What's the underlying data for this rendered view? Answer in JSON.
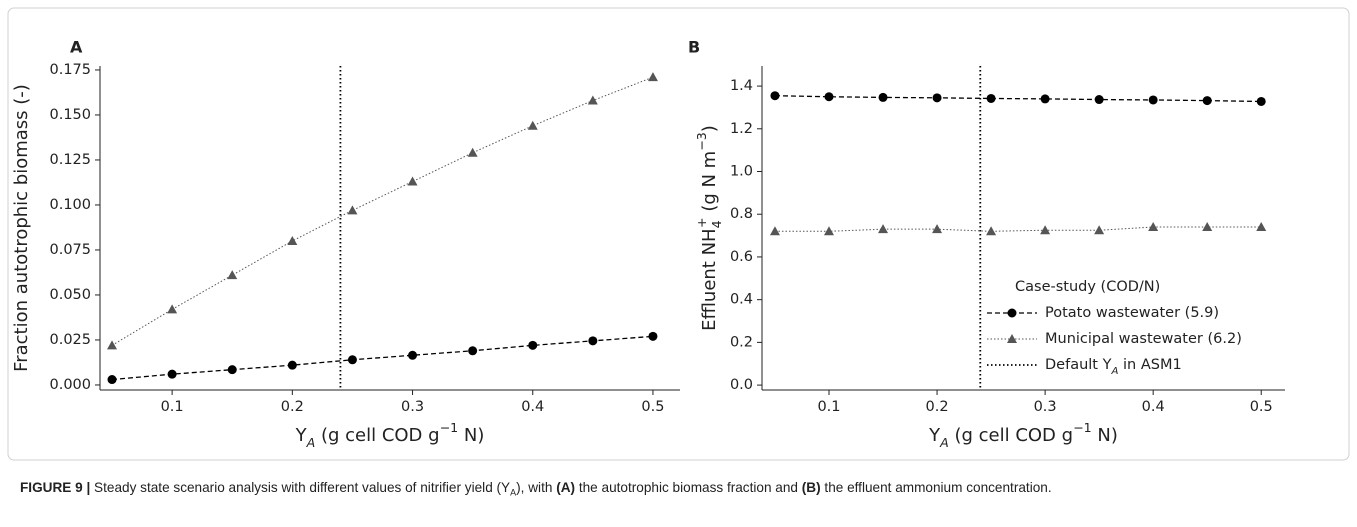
{
  "chart_data": [
    {
      "type": "line",
      "panel": "A",
      "x": [
        0.05,
        0.1,
        0.15,
        0.2,
        0.25,
        0.3,
        0.35,
        0.4,
        0.45,
        0.5
      ],
      "series": [
        {
          "name": "Potato wastewater (5.9)",
          "color": "#000000",
          "linestyle": "dashed",
          "marker": "circle",
          "values": [
            0.003,
            0.006,
            0.0085,
            0.011,
            0.014,
            0.0165,
            0.019,
            0.022,
            0.0245,
            0.027
          ]
        },
        {
          "name": "Municipal wastewater (6.2)",
          "color": "#555555",
          "linestyle": "dotted",
          "marker": "triangle",
          "values": [
            0.022,
            0.042,
            0.061,
            0.08,
            0.097,
            0.113,
            0.129,
            0.144,
            0.158,
            0.171
          ]
        }
      ],
      "vline": {
        "x": 0.24,
        "color": "#000000"
      },
      "xlim": [
        0.04,
        0.5225
      ],
      "xticks": [
        0.1,
        0.2,
        0.3,
        0.4,
        0.5
      ],
      "ylim": [
        -0.0028,
        0.1772
      ],
      "yticks": [
        {
          "value": 0,
          "label": "0.000"
        },
        0.025,
        {
          "value": 0.05,
          "label": "0.050"
        },
        0.075,
        {
          "value": 0.1,
          "label": "0.100"
        },
        0.125,
        {
          "value": 0.15,
          "label": "0.150"
        },
        0.175
      ],
      "xlabel": [
        {
          "text": "Y"
        },
        {
          "text": "A",
          "shift": "sub",
          "italic": true
        },
        {
          "text": " (g cell COD g"
        },
        {
          "text": "−1",
          "shift": "sup"
        },
        {
          "text": " N)"
        }
      ],
      "ylabel": [
        {
          "text": "Fraction autotrophic biomass (-)"
        }
      ],
      "legend": false
    },
    {
      "type": "line",
      "panel": "B",
      "x": [
        0.05,
        0.1,
        0.15,
        0.2,
        0.25,
        0.3,
        0.35,
        0.4,
        0.45,
        0.5
      ],
      "series": [
        {
          "name": "Potato wastewater (5.9)",
          "color": "#000000",
          "linestyle": "dashed",
          "marker": "circle",
          "values": [
            1.355,
            1.35,
            1.347,
            1.345,
            1.342,
            1.34,
            1.337,
            1.335,
            1.332,
            1.328
          ]
        },
        {
          "name": "Municipal wastewater (6.2)",
          "color": "#555555",
          "linestyle": "dotted",
          "marker": "triangle",
          "values": [
            0.72,
            0.72,
            0.73,
            0.73,
            0.72,
            0.725,
            0.725,
            0.74,
            0.74,
            0.74
          ]
        }
      ],
      "vline": {
        "x": 0.24,
        "color": "#000000",
        "label": [
          {
            "text": "Default Y"
          },
          {
            "text": "A",
            "shift": "sub",
            "italic": true
          },
          {
            "text": " in ASM1"
          }
        ]
      },
      "xlim": [
        0.038,
        0.522
      ],
      "xticks": [
        0.1,
        0.2,
        0.3,
        0.4,
        0.5
      ],
      "ylim": [
        -0.023,
        1.494
      ],
      "yticks": [
        {
          "value": 0,
          "label": "0.0"
        },
        0.2,
        0.4,
        0.6,
        0.8,
        {
          "value": 1,
          "label": "1.0"
        },
        1.2,
        1.4
      ],
      "xlabel": [
        {
          "text": "Y"
        },
        {
          "text": "A",
          "shift": "sub",
          "italic": true
        },
        {
          "text": " (g cell COD g"
        },
        {
          "text": "−1",
          "shift": "sup"
        },
        {
          "text": " N)"
        }
      ],
      "ylabel": [
        {
          "text": "Effluent NH"
        },
        {
          "text": "4",
          "shift": "sub"
        },
        {
          "text": "+",
          "shift": "sup"
        },
        {
          "text": " (g N m"
        },
        {
          "text": "−3",
          "shift": "sup"
        },
        {
          "text": ")"
        }
      ],
      "legend": true,
      "legend_title": "Case-study (COD/N)",
      "legend_position": "lower right"
    }
  ],
  "caption": [
    {
      "text": "FIGURE 9 |",
      "bold": true
    },
    {
      "text": " Steady state scenario analysis with different values of nitrifier yield (Y"
    },
    {
      "text": "A",
      "shift": "sub"
    },
    {
      "text": "), with "
    },
    {
      "text": "(A)",
      "bold": true
    },
    {
      "text": " the autotrophic biomass fraction and "
    },
    {
      "text": "(B)",
      "bold": true
    },
    {
      "text": " the effluent ammonium concentration."
    }
  ]
}
